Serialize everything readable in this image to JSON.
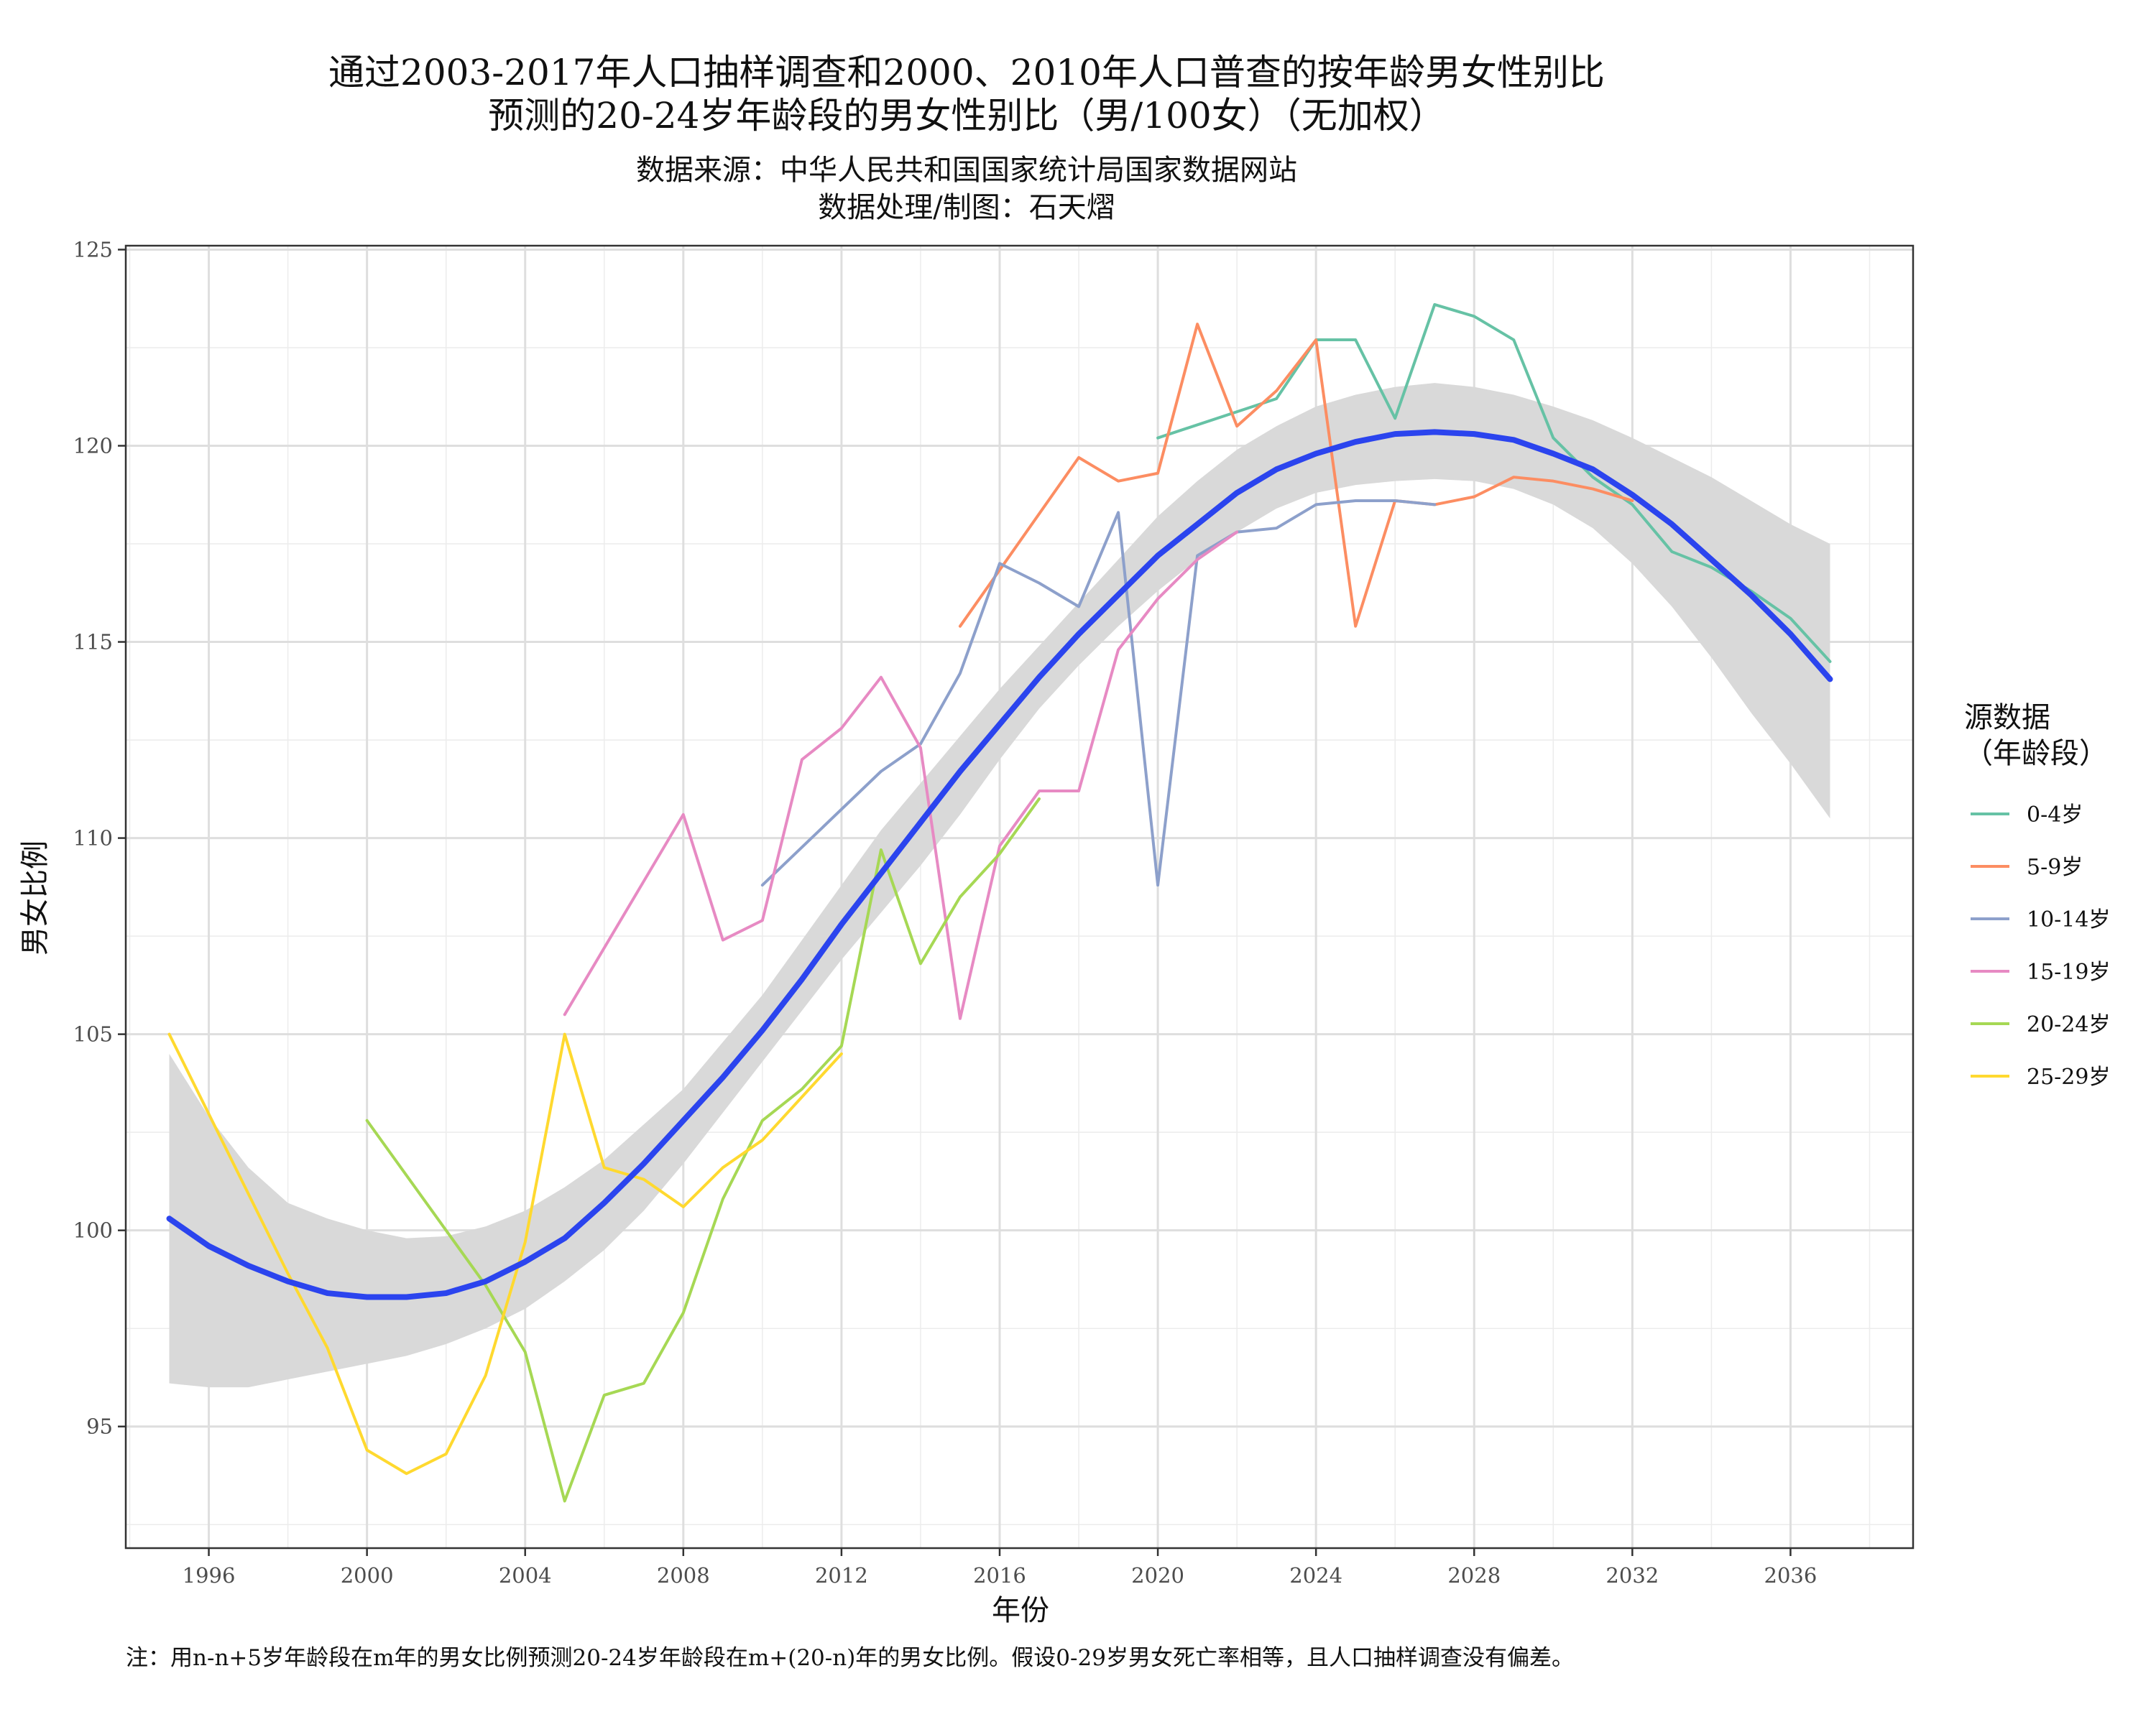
{
  "chart_data": {
    "type": "line",
    "title_lines": [
      "通过2003-2017年人口抽样调查和2000、2010年人口普查的按年龄男女性别比",
      "预测的20-24岁年龄段的男女性别比（男/100女）（无加权）"
    ],
    "subtitle_lines": [
      "数据来源：中华人民共和国国家统计局国家数据网站",
      "数据处理/制图：石天熠"
    ],
    "xlabel": "年份",
    "ylabel": "男女比例",
    "caption": "注：用n-n+5岁年龄段在m年的男女比例预测20-24岁年龄段在m+(20-n)年的男女比例。假设0-29岁男女死亡率相等，且人口抽样调查没有偏差。",
    "xlim": [
      1993.9,
      2039.1
    ],
    "ylim": [
      91.9,
      125.1
    ],
    "x_ticks": [
      1996,
      2000,
      2004,
      2008,
      2012,
      2016,
      2020,
      2024,
      2028,
      2032,
      2036
    ],
    "y_ticks": [
      95,
      100,
      105,
      110,
      115,
      120,
      125
    ],
    "grid": true,
    "legend": {
      "title_lines": [
        "源数据",
        "（年龄段）"
      ],
      "placement": "right"
    },
    "series": [
      {
        "name": "0-4岁",
        "color": "#66c2a5",
        "points": [
          [
            2020,
            120.2
          ],
          [
            2023,
            121.2
          ],
          [
            2024,
            122.7
          ],
          [
            2025,
            122.7
          ],
          [
            2026,
            120.7
          ],
          [
            2027,
            123.6
          ],
          [
            2028,
            123.3
          ],
          [
            2029,
            122.7
          ],
          [
            2030,
            120.2
          ],
          [
            2031,
            119.2
          ],
          [
            2032,
            118.5
          ],
          [
            2033,
            117.3
          ],
          [
            2034,
            116.9
          ],
          [
            2035,
            116.3
          ],
          [
            2036,
            115.6
          ],
          [
            2037,
            114.5
          ]
        ]
      },
      {
        "name": "5-9岁",
        "color": "#fc8d62",
        "points": [
          [
            2015,
            115.4
          ],
          [
            2018,
            119.7
          ],
          [
            2019,
            119.1
          ],
          [
            2020,
            119.3
          ],
          [
            2021,
            123.1
          ],
          [
            2022,
            120.5
          ],
          [
            2023,
            121.4
          ],
          [
            2024,
            122.7
          ],
          [
            2025,
            115.4
          ],
          [
            2026,
            118.6
          ],
          [
            2027,
            118.5
          ],
          [
            2028,
            118.7
          ],
          [
            2029,
            119.2
          ],
          [
            2030,
            119.1
          ],
          [
            2031,
            118.9
          ],
          [
            2032,
            118.6
          ]
        ]
      },
      {
        "name": "10-14岁",
        "color": "#8da0cb",
        "points": [
          [
            2010,
            108.8
          ],
          [
            2013,
            111.7
          ],
          [
            2014,
            112.4
          ],
          [
            2015,
            114.2
          ],
          [
            2016,
            117.0
          ],
          [
            2017,
            116.5
          ],
          [
            2018,
            115.9
          ],
          [
            2019,
            118.3
          ],
          [
            2020,
            108.8
          ],
          [
            2021,
            117.2
          ],
          [
            2022,
            117.8
          ],
          [
            2023,
            117.9
          ],
          [
            2024,
            118.5
          ],
          [
            2025,
            118.6
          ],
          [
            2026,
            118.6
          ],
          [
            2027,
            118.5
          ]
        ]
      },
      {
        "name": "15-19岁",
        "color": "#e78ac3",
        "points": [
          [
            2005,
            105.5
          ],
          [
            2008,
            110.6
          ],
          [
            2009,
            107.4
          ],
          [
            2010,
            107.9
          ],
          [
            2011,
            112.0
          ],
          [
            2012,
            112.8
          ],
          [
            2013,
            114.1
          ],
          [
            2014,
            112.3
          ],
          [
            2015,
            105.4
          ],
          [
            2016,
            109.8
          ],
          [
            2017,
            111.2
          ],
          [
            2018,
            111.2
          ],
          [
            2019,
            114.8
          ],
          [
            2020,
            116.1
          ],
          [
            2021,
            117.1
          ],
          [
            2022,
            117.8
          ]
        ]
      },
      {
        "name": "20-24岁",
        "color": "#a6d854",
        "points": [
          [
            2000,
            102.8
          ],
          [
            2003,
            98.6
          ],
          [
            2004,
            96.9
          ],
          [
            2005,
            93.1
          ],
          [
            2006,
            95.8
          ],
          [
            2007,
            96.1
          ],
          [
            2008,
            97.9
          ],
          [
            2009,
            100.8
          ],
          [
            2010,
            102.8
          ],
          [
            2011,
            103.6
          ],
          [
            2012,
            104.7
          ],
          [
            2013,
            109.7
          ],
          [
            2014,
            106.8
          ],
          [
            2015,
            108.5
          ],
          [
            2016,
            109.6
          ],
          [
            2017,
            111.0
          ]
        ]
      },
      {
        "name": "25-29岁",
        "color": "#ffd92f",
        "points": [
          [
            1995,
            105.0
          ],
          [
            1998,
            98.9
          ],
          [
            1999,
            97.0
          ],
          [
            2000,
            94.4
          ],
          [
            2001,
            93.8
          ],
          [
            2002,
            94.3
          ],
          [
            2003,
            96.3
          ],
          [
            2004,
            99.7
          ],
          [
            2005,
            105.0
          ],
          [
            2006,
            101.6
          ],
          [
            2007,
            101.3
          ],
          [
            2008,
            100.6
          ],
          [
            2009,
            101.6
          ],
          [
            2010,
            102.3
          ],
          [
            2011,
            103.4
          ],
          [
            2012,
            104.5
          ]
        ]
      }
    ],
    "smooth_fit": {
      "color": "#2b44ee",
      "points": [
        [
          1995,
          100.3
        ],
        [
          1996,
          99.6
        ],
        [
          1997,
          99.1
        ],
        [
          1998,
          98.7
        ],
        [
          1999,
          98.4
        ],
        [
          2000,
          98.3
        ],
        [
          2001,
          98.3
        ],
        [
          2002,
          98.4
        ],
        [
          2003,
          98.7
        ],
        [
          2004,
          99.2
        ],
        [
          2005,
          99.8
        ],
        [
          2006,
          100.7
        ],
        [
          2007,
          101.7
        ],
        [
          2008,
          102.8
        ],
        [
          2009,
          103.9
        ],
        [
          2010,
          105.1
        ],
        [
          2011,
          106.4
        ],
        [
          2012,
          107.8
        ],
        [
          2013,
          109.1
        ],
        [
          2014,
          110.4
        ],
        [
          2015,
          111.7
        ],
        [
          2016,
          112.9
        ],
        [
          2017,
          114.1
        ],
        [
          2018,
          115.2
        ],
        [
          2019,
          116.2
        ],
        [
          2020,
          117.2
        ],
        [
          2021,
          118.0
        ],
        [
          2022,
          118.8
        ],
        [
          2023,
          119.4
        ],
        [
          2024,
          119.8
        ],
        [
          2025,
          120.1
        ],
        [
          2026,
          120.3
        ],
        [
          2027,
          120.35
        ],
        [
          2028,
          120.3
        ],
        [
          2029,
          120.15
        ],
        [
          2030,
          119.8
        ],
        [
          2031,
          119.4
        ],
        [
          2032,
          118.75
        ],
        [
          2033,
          118.0
        ],
        [
          2034,
          117.1
        ],
        [
          2035,
          116.2
        ],
        [
          2036,
          115.2
        ],
        [
          2037,
          114.05
        ]
      ]
    },
    "confidence_band": {
      "color": "#d9d9d9",
      "upper": [
        [
          1995,
          104.5
        ],
        [
          1996,
          102.9
        ],
        [
          1997,
          101.6
        ],
        [
          1998,
          100.7
        ],
        [
          1999,
          100.3
        ],
        [
          2000,
          100.0
        ],
        [
          2001,
          99.8
        ],
        [
          2002,
          99.85
        ],
        [
          2003,
          100.1
        ],
        [
          2004,
          100.5
        ],
        [
          2005,
          101.1
        ],
        [
          2006,
          101.8
        ],
        [
          2007,
          102.7
        ],
        [
          2008,
          103.6
        ],
        [
          2009,
          104.8
        ],
        [
          2010,
          106.0
        ],
        [
          2011,
          107.4
        ],
        [
          2012,
          108.8
        ],
        [
          2013,
          110.2
        ],
        [
          2014,
          111.4
        ],
        [
          2015,
          112.6
        ],
        [
          2016,
          113.8
        ],
        [
          2017,
          114.9
        ],
        [
          2018,
          116.0
        ],
        [
          2019,
          117.1
        ],
        [
          2020,
          118.2
        ],
        [
          2021,
          119.1
        ],
        [
          2022,
          119.9
        ],
        [
          2023,
          120.5
        ],
        [
          2024,
          121.0
        ],
        [
          2025,
          121.3
        ],
        [
          2026,
          121.5
        ],
        [
          2027,
          121.6
        ],
        [
          2028,
          121.5
        ],
        [
          2029,
          121.3
        ],
        [
          2030,
          121.0
        ],
        [
          2031,
          120.65
        ],
        [
          2032,
          120.2
        ],
        [
          2033,
          119.7
        ],
        [
          2034,
          119.2
        ],
        [
          2035,
          118.6
        ],
        [
          2036,
          118.0
        ],
        [
          2037,
          117.5
        ]
      ],
      "lower": [
        [
          1995,
          96.1
        ],
        [
          1996,
          96.0
        ],
        [
          1997,
          96.0
        ],
        [
          1998,
          96.2
        ],
        [
          1999,
          96.4
        ],
        [
          2000,
          96.6
        ],
        [
          2001,
          96.8
        ],
        [
          2002,
          97.1
        ],
        [
          2003,
          97.5
        ],
        [
          2004,
          98.0
        ],
        [
          2005,
          98.7
        ],
        [
          2006,
          99.5
        ],
        [
          2007,
          100.5
        ],
        [
          2008,
          101.7
        ],
        [
          2009,
          103.0
        ],
        [
          2010,
          104.3
        ],
        [
          2011,
          105.6
        ],
        [
          2012,
          106.9
        ],
        [
          2013,
          108.1
        ],
        [
          2014,
          109.3
        ],
        [
          2015,
          110.6
        ],
        [
          2016,
          112.0
        ],
        [
          2017,
          113.3
        ],
        [
          2018,
          114.4
        ],
        [
          2019,
          115.4
        ],
        [
          2020,
          116.3
        ],
        [
          2021,
          117.1
        ],
        [
          2022,
          117.8
        ],
        [
          2023,
          118.4
        ],
        [
          2024,
          118.8
        ],
        [
          2025,
          119.0
        ],
        [
          2026,
          119.1
        ],
        [
          2027,
          119.15
        ],
        [
          2028,
          119.1
        ],
        [
          2029,
          118.9
        ],
        [
          2030,
          118.5
        ],
        [
          2031,
          117.9
        ],
        [
          2032,
          117.0
        ],
        [
          2033,
          115.9
        ],
        [
          2034,
          114.6
        ],
        [
          2035,
          113.2
        ],
        [
          2036,
          111.9
        ],
        [
          2037,
          110.5
        ]
      ]
    }
  }
}
